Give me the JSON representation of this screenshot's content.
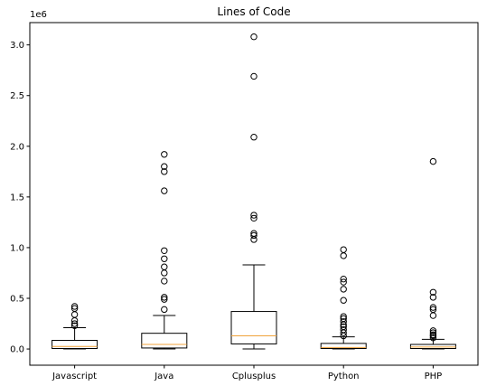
{
  "chart_data": {
    "type": "box",
    "title": "Lines of Code",
    "xlabel": "",
    "ylabel": "",
    "y_offset_label": "1e6",
    "ylim": [
      -0.16,
      3.22
    ],
    "yticks": [
      0.0,
      0.5,
      1.0,
      1.5,
      2.0,
      2.5,
      3.0
    ],
    "ytick_labels": [
      "0.0",
      "0.5",
      "1.0",
      "1.5",
      "2.0",
      "2.5",
      "3.0"
    ],
    "grid": false,
    "colors": {
      "box": "#000000",
      "median": "#f0a33b",
      "frame": "#000000"
    },
    "categories": [
      "Javascript",
      "Java",
      "Cplusplus",
      "Python",
      "PHP"
    ],
    "boxes": [
      {
        "name": "Javascript",
        "whisker_low": 0.0,
        "q1": 0.005,
        "median": 0.025,
        "q3": 0.085,
        "whisker_high": 0.21,
        "fliers": [
          0.23,
          0.25,
          0.28,
          0.34,
          0.4,
          0.42
        ]
      },
      {
        "name": "Java",
        "whisker_low": 0.0,
        "q1": 0.01,
        "median": 0.045,
        "q3": 0.155,
        "whisker_high": 0.33,
        "fliers": [
          0.39,
          0.49,
          0.51,
          0.67,
          0.75,
          0.81,
          0.89,
          0.97,
          1.56,
          1.75,
          1.8,
          1.92
        ]
      },
      {
        "name": "Cplusplus",
        "whisker_low": 0.0,
        "q1": 0.05,
        "median": 0.13,
        "q3": 0.37,
        "whisker_high": 0.83,
        "fliers": [
          1.08,
          1.12,
          1.14,
          1.29,
          1.32,
          2.09,
          2.69,
          3.08
        ]
      },
      {
        "name": "Python",
        "whisker_low": 0.0,
        "q1": 0.005,
        "median": 0.015,
        "q3": 0.055,
        "whisker_high": 0.12,
        "fliers": [
          0.13,
          0.16,
          0.19,
          0.22,
          0.24,
          0.27,
          0.3,
          0.32,
          0.48,
          0.59,
          0.66,
          0.69,
          0.92,
          0.98
        ]
      },
      {
        "name": "PHP",
        "whisker_low": 0.0,
        "q1": 0.005,
        "median": 0.02,
        "q3": 0.045,
        "whisker_high": 0.095,
        "fliers": [
          0.11,
          0.13,
          0.14,
          0.16,
          0.18,
          0.33,
          0.39,
          0.41,
          0.51,
          0.56,
          1.85
        ]
      }
    ]
  }
}
